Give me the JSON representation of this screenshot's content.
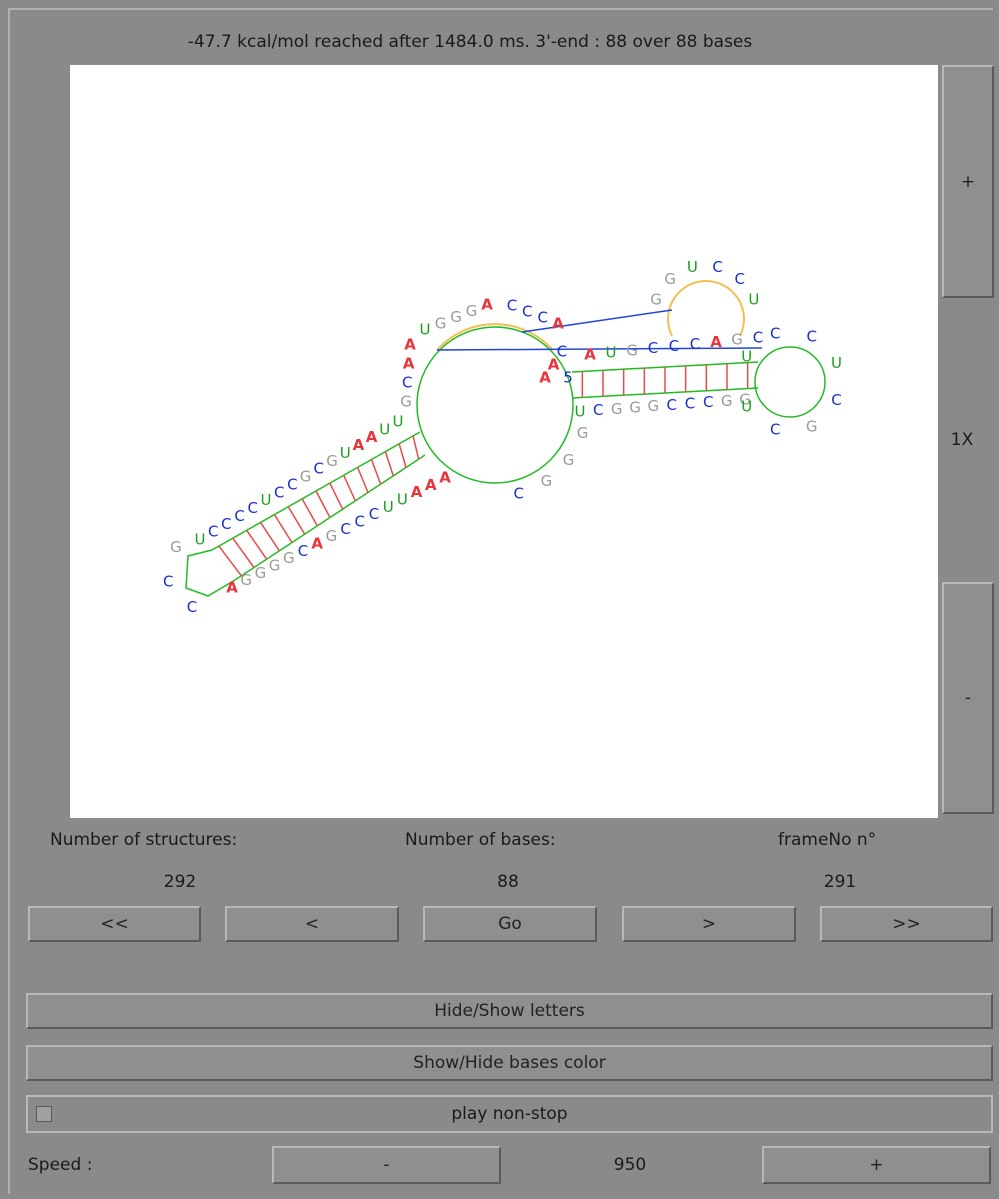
{
  "status": "-47.7 kcal/mol reached after 1484.0 ms. 3'-end : 88 over 88 bases",
  "zoom": {
    "plus": "+",
    "level": "1X",
    "minus": "-"
  },
  "structure": {
    "five_prime": "5",
    "bases": [
      "U",
      "C",
      "G",
      "G",
      "G",
      "C",
      "C",
      "C",
      "G",
      "G",
      "U",
      "C",
      "G",
      "C",
      "U",
      "C",
      "C",
      "U",
      "C",
      "G",
      "A",
      "C",
      "C",
      "C",
      "G",
      "U",
      "A",
      "G",
      "G",
      "U",
      "C",
      "C",
      "U",
      "C",
      "C",
      "C",
      "A",
      "A",
      "G",
      "G",
      "G",
      "U",
      "A",
      "A",
      "C",
      "G",
      "U",
      "U",
      "A",
      "A",
      "U",
      "G",
      "C",
      "G",
      "C",
      "C",
      "U",
      "C",
      "C",
      "C",
      "C",
      "U",
      "G",
      "C",
      "C",
      "A",
      "G",
      "G",
      "G",
      "G",
      "C",
      "A",
      "G",
      "C",
      "C",
      "C",
      "U",
      "U",
      "A",
      "A",
      "A",
      "C",
      "G",
      "G",
      "G",
      "A",
      "A",
      "C"
    ]
  },
  "stats": {
    "labels": [
      "Number of structures:",
      "Number of bases:",
      "frameNo n°"
    ],
    "values": [
      "292",
      "88",
      "291"
    ]
  },
  "navigation": [
    "<<",
    "<",
    "Go",
    ">",
    ">>"
  ],
  "buttons": {
    "letters": "Hide/Show letters",
    "colors": "Show/Hide bases color"
  },
  "play": "play non-stop",
  "speed": {
    "label": "Speed :",
    "decrease": "-",
    "value": "950",
    "increase": "+"
  }
}
